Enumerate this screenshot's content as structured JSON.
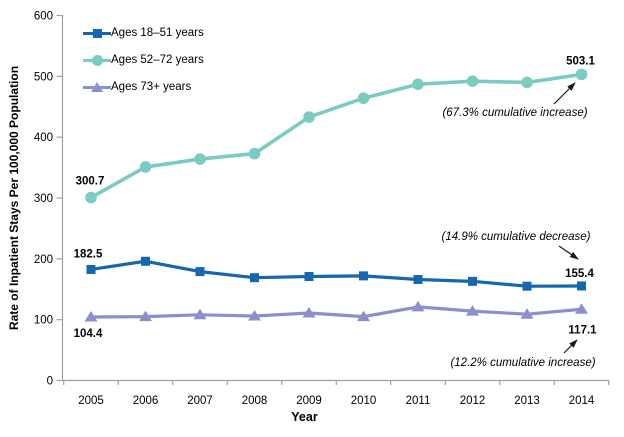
{
  "chart_data": {
    "type": "line",
    "title": "",
    "xlabel": "Year",
    "ylabel": "Rate of Inpatient Stays Per 100,000 Population",
    "categories": [
      "2005",
      "2006",
      "2007",
      "2008",
      "2009",
      "2010",
      "2011",
      "2012",
      "2013",
      "2014"
    ],
    "ylim": [
      0,
      600
    ],
    "yticks": [
      0,
      100,
      200,
      300,
      400,
      500,
      600
    ],
    "grid": false,
    "legend_position": "top-left inside plot",
    "series": [
      {
        "name": "Ages 18–51 years",
        "color": "#1667ae",
        "marker": "square",
        "values": [
          182.5,
          196,
          179,
          169,
          171,
          172,
          166,
          163,
          155,
          155.4
        ],
        "first_label": "182.5",
        "last_label": "155.4",
        "annotation": "(14.9% cumulative decrease)"
      },
      {
        "name": "Ages 52–72 years",
        "color": "#7bcbc2",
        "marker": "circle",
        "values": [
          300.7,
          351,
          364,
          373,
          433,
          464,
          487,
          492,
          490,
          503.1
        ],
        "first_label": "300.7",
        "last_label": "503.1",
        "annotation": "(67.3% cumulative increase)"
      },
      {
        "name": "Ages 73+ years",
        "color": "#8c8fcc",
        "marker": "triangle",
        "values": [
          104.4,
          105,
          108,
          106,
          111,
          105,
          121,
          114,
          109,
          117.1
        ],
        "first_label": "104.4",
        "last_label": "117.1",
        "annotation": "(12.2% cumulative increase)"
      }
    ],
    "annotations": [
      "(67.3% cumulative increase)",
      "(14.9% cumulative decrease)",
      "(12.2% cumulative increase)"
    ]
  },
  "colors": {
    "axis": "#a0a0a0",
    "text": "#000000",
    "background": "#ffffff",
    "arrow": "#1a1a1a"
  }
}
